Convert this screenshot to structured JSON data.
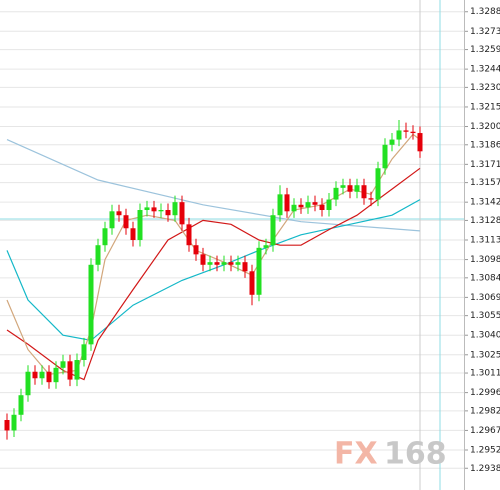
{
  "chart_data": {
    "type": "candlestick",
    "ylim": [
      1.2929,
      1.3297
    ],
    "yticks": [
      1.3288,
      1.3273,
      1.3259,
      1.3244,
      {
        "value": 1.323,
        "label": "1.3230"
      },
      1.3215,
      {
        "value": 1.32,
        "label": "1.3200"
      },
      1.3186,
      1.3171,
      1.3157,
      1.3142,
      1.3128,
      1.3113,
      1.3098,
      1.3084,
      1.3069,
      1.3055,
      {
        "value": 1.304,
        "label": "1.3040"
      },
      1.3025,
      1.3011,
      1.2996,
      1.2982,
      1.2967,
      1.2952,
      1.2938
    ],
    "grid": true,
    "up_color": "#22e022",
    "down_color": "#e5000a",
    "open": [
      1.2975,
      1.2967,
      1.2979,
      1.2994,
      1.3012,
      1.3007,
      1.3012,
      1.3004,
      1.3015,
      1.302,
      1.3006,
      1.3021,
      1.3033,
      1.3094,
      1.3109,
      1.3122,
      1.3135,
      1.3132,
      1.3122,
      1.3113,
      1.3136,
      1.3138,
      1.3135,
      1.3136,
      1.3132,
      1.3142,
      1.3125,
      1.3109,
      1.3102,
      1.3094,
      1.3096,
      1.3094,
      1.3096,
      1.3094,
      1.3096,
      1.3089,
      1.3071,
      1.3107,
      1.3109,
      1.3132,
      1.3148,
      1.3135,
      1.314,
      1.3138,
      1.3142,
      1.314,
      1.3136,
      1.3144,
      1.3153,
      1.3155,
      1.315,
      1.3155,
      1.3145,
      1.3144,
      1.3168,
      1.3186,
      1.319,
      1.3197,
      1.3196,
      1.3195
    ],
    "high": [
      1.298,
      1.2984,
      1.2999,
      1.3017,
      1.3017,
      1.3017,
      1.3017,
      1.302,
      1.3025,
      1.3025,
      1.3026,
      1.3038,
      1.3099,
      1.3114,
      1.3127,
      1.314,
      1.314,
      1.3137,
      1.3127,
      1.3141,
      1.3143,
      1.3143,
      1.3141,
      1.3141,
      1.3147,
      1.3147,
      1.313,
      1.3114,
      1.3107,
      1.3101,
      1.3101,
      1.3101,
      1.3101,
      1.3101,
      1.3101,
      1.3094,
      1.3112,
      1.3114,
      1.3137,
      1.3155,
      1.3153,
      1.3145,
      1.3145,
      1.3147,
      1.3147,
      1.3145,
      1.3149,
      1.3158,
      1.316,
      1.316,
      1.316,
      1.316,
      1.315,
      1.3173,
      1.3191,
      1.3195,
      1.3205,
      1.3203,
      1.3201,
      1.32
    ],
    "low": [
      1.296,
      1.2962,
      1.2974,
      1.2989,
      1.3002,
      1.3002,
      1.2999,
      1.2999,
      1.301,
      1.3001,
      1.3001,
      1.3016,
      1.3028,
      1.3089,
      1.3104,
      1.3117,
      1.3127,
      1.3117,
      1.3108,
      1.3108,
      1.3131,
      1.313,
      1.313,
      1.3127,
      1.3127,
      1.312,
      1.3104,
      1.3097,
      1.3089,
      1.3089,
      1.3089,
      1.3089,
      1.3089,
      1.3089,
      1.3084,
      1.3063,
      1.3066,
      1.3102,
      1.3104,
      1.3127,
      1.313,
      1.313,
      1.3133,
      1.3133,
      1.3135,
      1.3131,
      1.3131,
      1.3139,
      1.3148,
      1.3145,
      1.3145,
      1.314,
      1.3139,
      1.3139,
      1.3163,
      1.3181,
      1.3185,
      1.3191,
      1.319,
      1.3176
    ],
    "close": [
      1.2967,
      1.2979,
      1.2994,
      1.3012,
      1.3007,
      1.3012,
      1.3004,
      1.3015,
      1.302,
      1.3006,
      1.3021,
      1.3033,
      1.3094,
      1.3109,
      1.3122,
      1.3135,
      1.3132,
      1.3122,
      1.3113,
      1.3136,
      1.3138,
      1.3135,
      1.3136,
      1.3132,
      1.3142,
      1.3125,
      1.3109,
      1.3102,
      1.3094,
      1.3096,
      1.3094,
      1.3096,
      1.3094,
      1.3096,
      1.3089,
      1.3071,
      1.3107,
      1.3109,
      1.3132,
      1.3148,
      1.3135,
      1.314,
      1.3138,
      1.3142,
      1.314,
      1.3136,
      1.3144,
      1.3153,
      1.3155,
      1.315,
      1.3155,
      1.3145,
      1.3144,
      1.3168,
      1.3186,
      1.319,
      1.3197,
      1.3196,
      1.3195,
      1.3181
    ],
    "lines": [
      {
        "color": "#9cc3dc",
        "x": [
          0,
          13,
          28,
          42,
          59
        ],
        "values": [
          1.319,
          1.3159,
          1.314,
          1.3127,
          1.312
        ]
      },
      {
        "color": "#14b8c8",
        "x": [
          0,
          3,
          8,
          12,
          18,
          25,
          31,
          36,
          42,
          49,
          55,
          59
        ],
        "values": [
          1.3105,
          1.3067,
          1.304,
          1.3036,
          1.3063,
          1.3082,
          1.3094,
          1.3105,
          1.3117,
          1.3125,
          1.3132,
          1.3144
        ]
      },
      {
        "color": "#d21818",
        "x": [
          0,
          3,
          8,
          11,
          13,
          18,
          23,
          28,
          32,
          36,
          39,
          42,
          46,
          50,
          55,
          59
        ],
        "values": [
          1.3044,
          1.3033,
          1.3013,
          1.3006,
          1.3036,
          1.3075,
          1.3113,
          1.3128,
          1.3125,
          1.3113,
          1.3109,
          1.3109,
          1.3121,
          1.3132,
          1.3152,
          1.3168
        ]
      },
      {
        "color": "#d2a77c",
        "x": [
          0,
          3,
          6,
          10,
          12,
          14,
          17,
          20,
          24,
          27,
          31,
          35,
          38,
          41,
          45,
          49,
          52,
          55,
          58,
          59
        ],
        "values": [
          1.3067,
          1.3029,
          1.301,
          1.3013,
          1.3044,
          1.3098,
          1.3128,
          1.3132,
          1.3128,
          1.3105,
          1.3096,
          1.3086,
          1.3113,
          1.3136,
          1.314,
          1.3152,
          1.3148,
          1.3175,
          1.3194,
          1.319
        ]
      }
    ],
    "watermark": {
      "brand": "FX",
      "number": "168"
    }
  }
}
